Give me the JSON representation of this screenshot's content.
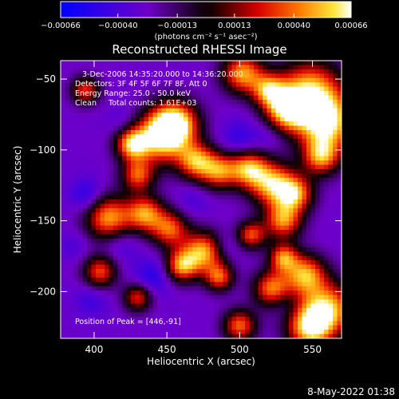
{
  "chart_data": {
    "type": "heatmap",
    "title": "Reconstructed RHESSI Image",
    "xlabel": "Heliocentric X (arcsec)",
    "ylabel": "Heliocentric Y (arcsec)",
    "xlim": [
      377,
      570
    ],
    "ylim": [
      -233,
      -37
    ],
    "x_ticks": [
      400,
      450,
      500,
      550
    ],
    "x_tick_labels": [
      "400",
      "450",
      "500",
      "550"
    ],
    "y_ticks": [
      -50,
      -100,
      -150,
      -200
    ],
    "y_tick_labels": [
      "−50",
      "−100",
      "−150",
      "−200"
    ],
    "colorbar": {
      "min": -0.00066,
      "max": 0.00066,
      "ticks": [
        -0.00066,
        -0.0004,
        -0.00013,
        0.00013,
        0.0004,
        0.00066
      ],
      "tick_labels": [
        "−0.00066",
        "−0.00040",
        "−0.00013",
        "0.00013",
        "0.00040",
        "0.00066"
      ],
      "units_text": "(photons cm⁻² s⁻¹ asec⁻²)"
    },
    "annotations": [
      "3-Dec-2006 14:35:20.000 to 14:36:20.000",
      "Detectors: 3F 4F 5F 6F 7F 8F, Att 0",
      "Energy Range: 25.0 - 50.0 keV",
      "Clean     Total counts: 1.61E+03"
    ],
    "peak_label": "Position of Peak = [446,-91]",
    "peak": {
      "x": 446,
      "y": -91
    },
    "grid": false,
    "blobs": [
      {
        "x": 446,
        "y": -91,
        "r": 13,
        "v": 0.00066
      },
      {
        "x": 456,
        "y": -81,
        "r": 11,
        "v": 0.00062
      },
      {
        "x": 426,
        "y": -96,
        "r": 8,
        "v": 0.00055
      },
      {
        "x": 470,
        "y": -108,
        "r": 9,
        "v": 0.0005
      },
      {
        "x": 486,
        "y": -115,
        "r": 9,
        "v": 0.00045
      },
      {
        "x": 506,
        "y": -113,
        "r": 9,
        "v": 0.0005
      },
      {
        "x": 522,
        "y": -124,
        "r": 11,
        "v": 0.00058
      },
      {
        "x": 538,
        "y": -131,
        "r": 9,
        "v": 0.0005
      },
      {
        "x": 548,
        "y": -60,
        "r": 16,
        "v": 0.00066
      },
      {
        "x": 560,
        "y": -82,
        "r": 14,
        "v": 0.00062
      },
      {
        "x": 532,
        "y": -72,
        "r": 10,
        "v": 0.0005
      },
      {
        "x": 556,
        "y": -105,
        "r": 9,
        "v": 0.00046
      },
      {
        "x": 502,
        "y": -46,
        "r": 10,
        "v": 0.00055
      },
      {
        "x": 520,
        "y": -58,
        "r": 8,
        "v": 0.00042
      },
      {
        "x": 410,
        "y": -148,
        "r": 11,
        "v": 0.00055
      },
      {
        "x": 435,
        "y": -145,
        "r": 9,
        "v": 0.0005
      },
      {
        "x": 452,
        "y": -156,
        "r": 9,
        "v": 0.00042
      },
      {
        "x": 475,
        "y": -172,
        "r": 10,
        "v": 0.00058
      },
      {
        "x": 460,
        "y": -182,
        "r": 8,
        "v": 0.0005
      },
      {
        "x": 486,
        "y": -190,
        "r": 7,
        "v": 0.0004
      },
      {
        "x": 530,
        "y": -150,
        "r": 9,
        "v": 0.0005
      },
      {
        "x": 508,
        "y": -160,
        "r": 7,
        "v": 0.0004
      },
      {
        "x": 545,
        "y": -188,
        "r": 10,
        "v": 0.00055
      },
      {
        "x": 522,
        "y": -198,
        "r": 9,
        "v": 0.00048
      },
      {
        "x": 560,
        "y": -212,
        "r": 13,
        "v": 0.00062
      },
      {
        "x": 548,
        "y": -226,
        "r": 11,
        "v": 0.00058
      },
      {
        "x": 500,
        "y": -224,
        "r": 8,
        "v": 0.00045
      },
      {
        "x": 530,
        "y": -176,
        "r": 7,
        "v": 0.00045
      },
      {
        "x": 404,
        "y": -186,
        "r": 8,
        "v": 0.0004
      },
      {
        "x": 430,
        "y": -204,
        "r": 7,
        "v": 0.00035
      },
      {
        "x": 430,
        "y": -118,
        "r": 8,
        "v": 0.0004
      },
      {
        "x": 394,
        "y": -58,
        "r": 7,
        "v": 0.00035
      },
      {
        "x": 395,
        "y": -132,
        "r": 8,
        "v": -0.00055
      },
      {
        "x": 418,
        "y": -166,
        "r": 9,
        "v": -0.00045
      },
      {
        "x": 440,
        "y": -190,
        "r": 9,
        "v": -0.00055
      },
      {
        "x": 468,
        "y": -136,
        "r": 8,
        "v": -0.0004
      },
      {
        "x": 500,
        "y": -92,
        "r": 9,
        "v": -0.0005
      },
      {
        "x": 520,
        "y": -90,
        "r": 7,
        "v": -0.0004
      },
      {
        "x": 490,
        "y": -168,
        "r": 7,
        "v": -0.00045
      },
      {
        "x": 398,
        "y": -206,
        "r": 8,
        "v": -0.00045
      },
      {
        "x": 530,
        "y": -208,
        "r": 7,
        "v": -0.0004
      },
      {
        "x": 420,
        "y": -80,
        "r": 8,
        "v": -0.0004
      },
      {
        "x": 386,
        "y": -168,
        "r": 7,
        "v": -0.0004
      }
    ]
  },
  "footer": {
    "date_stamp": "8-May-2022 01:38"
  }
}
